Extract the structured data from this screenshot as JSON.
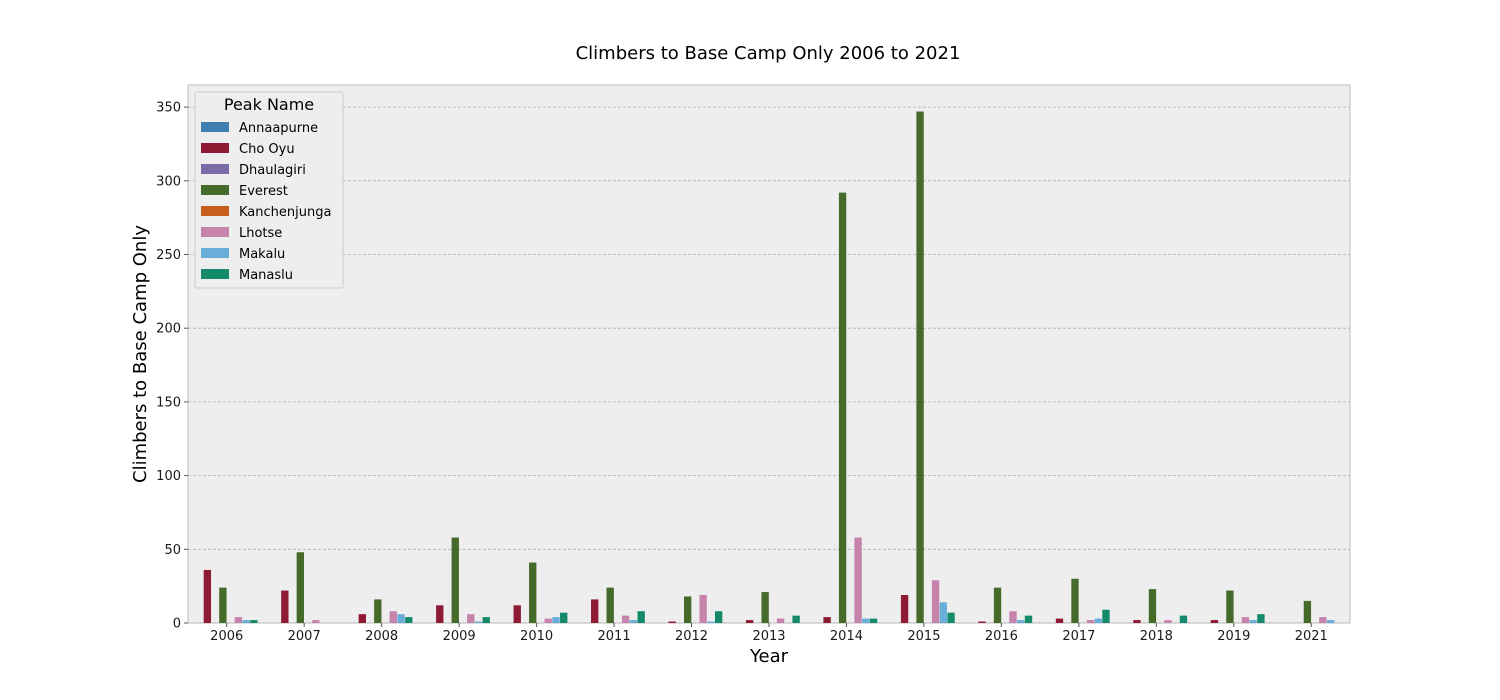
{
  "chart_data": {
    "type": "bar",
    "title": "Climbers to Base Camp Only 2006 to 2021",
    "xlabel": "Year",
    "ylabel": "Climbers to Base Camp Only",
    "ylim": [
      0,
      365
    ],
    "yticks": [
      0,
      50,
      100,
      150,
      200,
      250,
      300,
      350
    ],
    "grid": true,
    "legend": {
      "title": "Peak Name",
      "placement": "top-left"
    },
    "categories": [
      "2006",
      "2007",
      "2008",
      "2009",
      "2010",
      "2011",
      "2012",
      "2013",
      "2014",
      "2015",
      "2016",
      "2017",
      "2018",
      "2019",
      "2021"
    ],
    "series": [
      {
        "name": "Annaapurne",
        "color": "#3f7fb0",
        "values": [
          0,
          0,
          0,
          0,
          0,
          0,
          0,
          0,
          0,
          0,
          0,
          0,
          0,
          0,
          0
        ]
      },
      {
        "name": "Cho Oyu",
        "color": "#8e1a34",
        "values": [
          36,
          22,
          6,
          12,
          12,
          16,
          1,
          2,
          4,
          19,
          1,
          3,
          2,
          2,
          0
        ]
      },
      {
        "name": "Dhaulagiri",
        "color": "#7b6ba6",
        "values": [
          0,
          0,
          0,
          0,
          0,
          0,
          0,
          0,
          0,
          0,
          0,
          0,
          0,
          0,
          0
        ]
      },
      {
        "name": "Everest",
        "color": "#466a2a",
        "values": [
          24,
          48,
          16,
          58,
          41,
          24,
          18,
          21,
          292,
          347,
          24,
          30,
          23,
          22,
          15
        ]
      },
      {
        "name": "Kanchenjunga",
        "color": "#c65f1e",
        "values": [
          0,
          0,
          0,
          0,
          0,
          0,
          0,
          0,
          0,
          0,
          0,
          0,
          0,
          0,
          0
        ]
      },
      {
        "name": "Lhotse",
        "color": "#c683ac",
        "values": [
          4,
          2,
          8,
          6,
          3,
          5,
          19,
          3,
          58,
          29,
          8,
          2,
          2,
          4,
          4
        ]
      },
      {
        "name": "Makalu",
        "color": "#69aedb",
        "values": [
          2,
          0,
          6,
          1,
          4,
          2,
          1,
          0,
          3,
          14,
          2,
          3,
          0,
          2,
          2
        ]
      },
      {
        "name": "Manaslu",
        "color": "#148a6a",
        "values": [
          2,
          0,
          4,
          4,
          7,
          8,
          8,
          5,
          3,
          7,
          5,
          9,
          5,
          6,
          0
        ]
      }
    ]
  }
}
